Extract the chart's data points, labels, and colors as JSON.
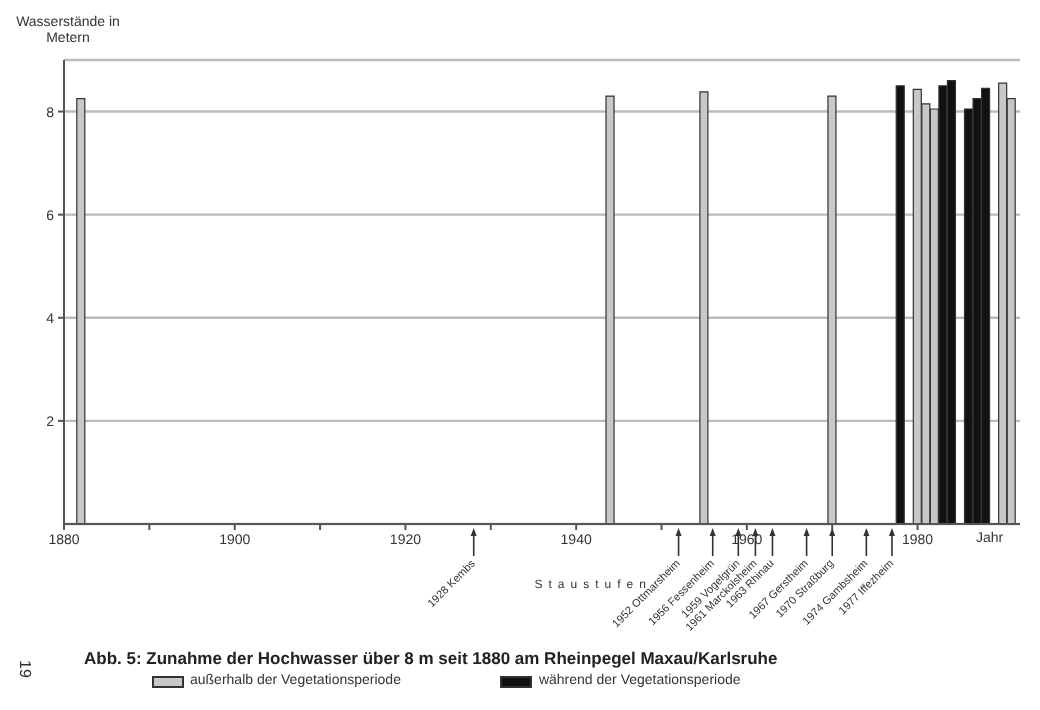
{
  "chart_data": {
    "type": "bar",
    "title": "Abb. 5: Zunahme der Hochwasser über 8 m seit 1880 am Rheinpegel Maxau/Karlsruhe",
    "ylabel": "Wasserstände in Metern",
    "xlabel": "Jahr",
    "xlim": [
      1880,
      1992
    ],
    "xticks": [
      1880,
      {
        "value": 1890,
        "label": null
      },
      1900,
      {
        "value": 1910,
        "label": null
      },
      1920,
      {
        "value": 1930,
        "label": null
      },
      1940,
      {
        "value": 1950,
        "label": null
      },
      1960,
      {
        "value": 1970,
        "label": null
      },
      1980
    ],
    "ylim": [
      0,
      9
    ],
    "yticks": [
      2,
      4,
      6,
      8
    ],
    "grid": "y",
    "legend": "bottom",
    "series": [
      {
        "name": "außerhalb der Vegetationsperiode",
        "color": "#c8c8c8",
        "x": [
          1882,
          1944,
          1955,
          1970,
          1980,
          1981,
          1982,
          1990,
          1991
        ],
        "values": [
          8.25,
          8.3,
          8.38,
          8.3,
          8.43,
          8.15,
          8.05,
          8.55,
          8.25
        ]
      },
      {
        "name": "während der Vegetationsperiode",
        "color": "#111111",
        "x": [
          1978,
          1983,
          1984,
          1986,
          1987,
          1988
        ],
        "values": [
          8.5,
          8.5,
          8.6,
          8.05,
          8.25,
          8.45
        ]
      }
    ],
    "ref_lines": [
      {
        "axis": "x",
        "value": 1928,
        "label": "1928 Kembs"
      },
      {
        "axis": "x",
        "value": 1952,
        "label": "1952 Ottmarsheim"
      },
      {
        "axis": "x",
        "value": 1956,
        "label": "1956 Fessenheim"
      },
      {
        "axis": "x",
        "value": 1959,
        "label": "1959 Vogelgrün"
      },
      {
        "axis": "x",
        "value": 1961,
        "label": "1961 Marckolsheim"
      },
      {
        "axis": "x",
        "value": 1963,
        "label": "1963 Rhinau"
      },
      {
        "axis": "x",
        "value": 1967,
        "label": "1967 Gerstheim"
      },
      {
        "axis": "x",
        "value": 1970,
        "label": "1970 Straßburg"
      },
      {
        "axis": "x",
        "value": 1974,
        "label": "1974 Gambsheim"
      },
      {
        "axis": "x",
        "value": 1977,
        "label": "1977 Iffezheim"
      }
    ],
    "annotations": [
      "Staustufen",
      "19"
    ]
  }
}
